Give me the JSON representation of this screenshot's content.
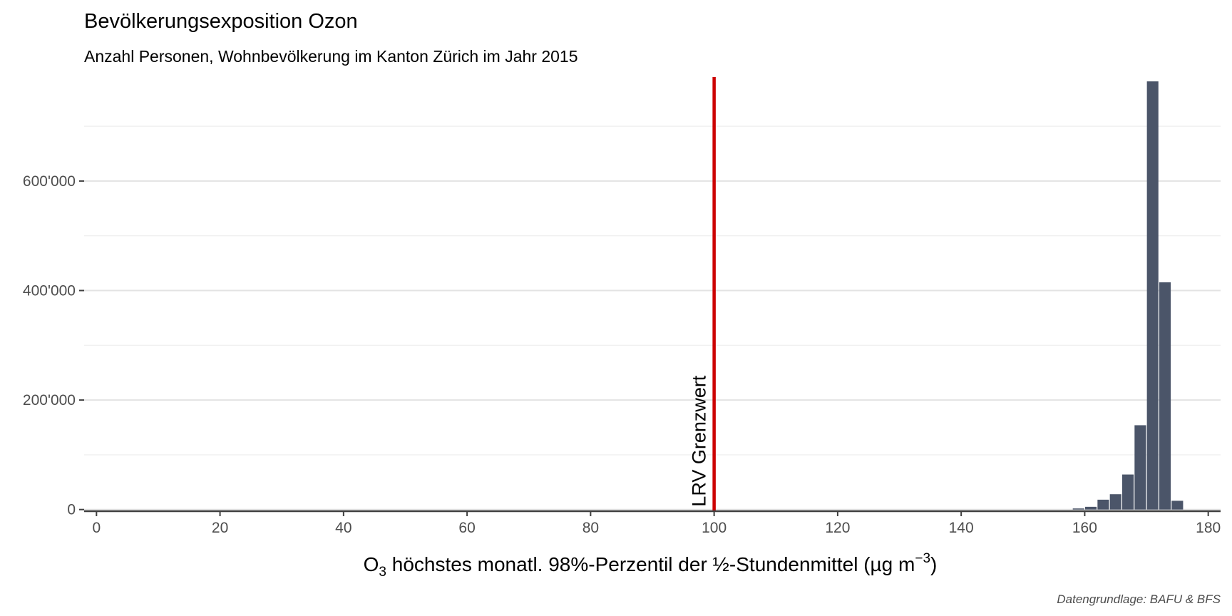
{
  "chart_data": {
    "type": "bar",
    "title": "Bevölkerungsexposition Ozon",
    "subtitle": "Anzahl Personen, Wohnbevölkerung im Kanton Zürich im Jahr 2015",
    "xlabel": {
      "main": "O",
      "sub": "3",
      "rest": " höchstes monatl. 98%-Perzentil der ½-Stundenmittel (µg m",
      "sup": "−3",
      "end": ")"
    },
    "ylabel": "",
    "caption": "Datengrundlage: BAFU & BFS",
    "xlim": [
      -2,
      182
    ],
    "ylim": [
      -3000,
      790000
    ],
    "x_ticks": [
      0,
      20,
      40,
      60,
      80,
      100,
      120,
      140,
      160,
      180
    ],
    "x_tick_labels": [
      "0",
      "20",
      "40",
      "60",
      "80",
      "100",
      "120",
      "140",
      "160",
      "180"
    ],
    "y_ticks": [
      0,
      200000,
      400000,
      600000
    ],
    "y_tick_labels": [
      "0",
      "200'000",
      "400'000",
      "600'000"
    ],
    "grid": true,
    "bar_width": 2,
    "bars": [
      {
        "x": 159,
        "value": 2000
      },
      {
        "x": 161,
        "value": 5000
      },
      {
        "x": 163,
        "value": 18000
      },
      {
        "x": 165,
        "value": 28000
      },
      {
        "x": 167,
        "value": 64000
      },
      {
        "x": 169,
        "value": 154000
      },
      {
        "x": 171,
        "value": 782000
      },
      {
        "x": 173,
        "value": 415000
      },
      {
        "x": 175,
        "value": 16000
      }
    ],
    "reference_line": {
      "x": 100,
      "label": "LRV Grenzwert",
      "color": "#cc0000"
    },
    "bar_color": "#4b5569"
  }
}
